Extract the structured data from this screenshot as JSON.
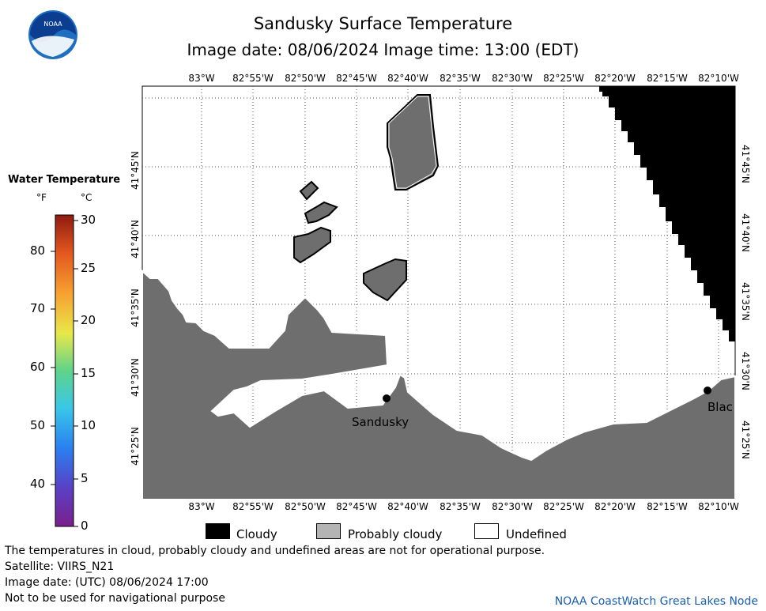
{
  "title": "Sandusky Surface Temperature",
  "image_date_line": "Image date: 08/06/2024      Image time: 13:00 (EDT)",
  "logo": {
    "text": "NOAA",
    "colors": {
      "blue": "#1f6fc1",
      "dark": "#0b3d91"
    }
  },
  "lon_ticks": [
    "83°W",
    "82°55'W",
    "82°50'W",
    "82°45'W",
    "82°40'W",
    "82°35'W",
    "82°30'W",
    "82°25'W",
    "82°20'W",
    "82°15'W",
    "82°10'W"
  ],
  "lat_ticks": [
    "41°45'N",
    "41°40'N",
    "41°35'N",
    "41°30'N",
    "41°25'N"
  ],
  "legend": {
    "title": "Water Temperature",
    "unit_f": "°F",
    "unit_c": "°C",
    "f_ticks": [
      "80",
      "70",
      "60",
      "50",
      "40"
    ],
    "c_ticks": [
      "30",
      "25",
      "20",
      "15",
      "10",
      "5",
      "0"
    ]
  },
  "categories": [
    {
      "label": "Cloudy",
      "color": "#000000"
    },
    {
      "label": "Probably cloudy",
      "color": "#b4b4b4"
    },
    {
      "label": "Undefined",
      "color": "#ffffff"
    }
  ],
  "places": {
    "sandusky": "Sandusky",
    "blac": "Blac"
  },
  "colors": {
    "land": "#6e6e6e",
    "cloud": "#000000",
    "water": "#ffffff"
  },
  "footer": {
    "line1": "The temperatures in cloud, probably cloudy and undefined areas are not for operational purpose.",
    "line2": "Satellite: VIIRS_N21",
    "line3": "Image date: (UTC) 08/06/2024  17:00",
    "line4": "Not to be used for navigational purpose",
    "credit": "NOAA CoastWatch Great Lakes Node"
  }
}
